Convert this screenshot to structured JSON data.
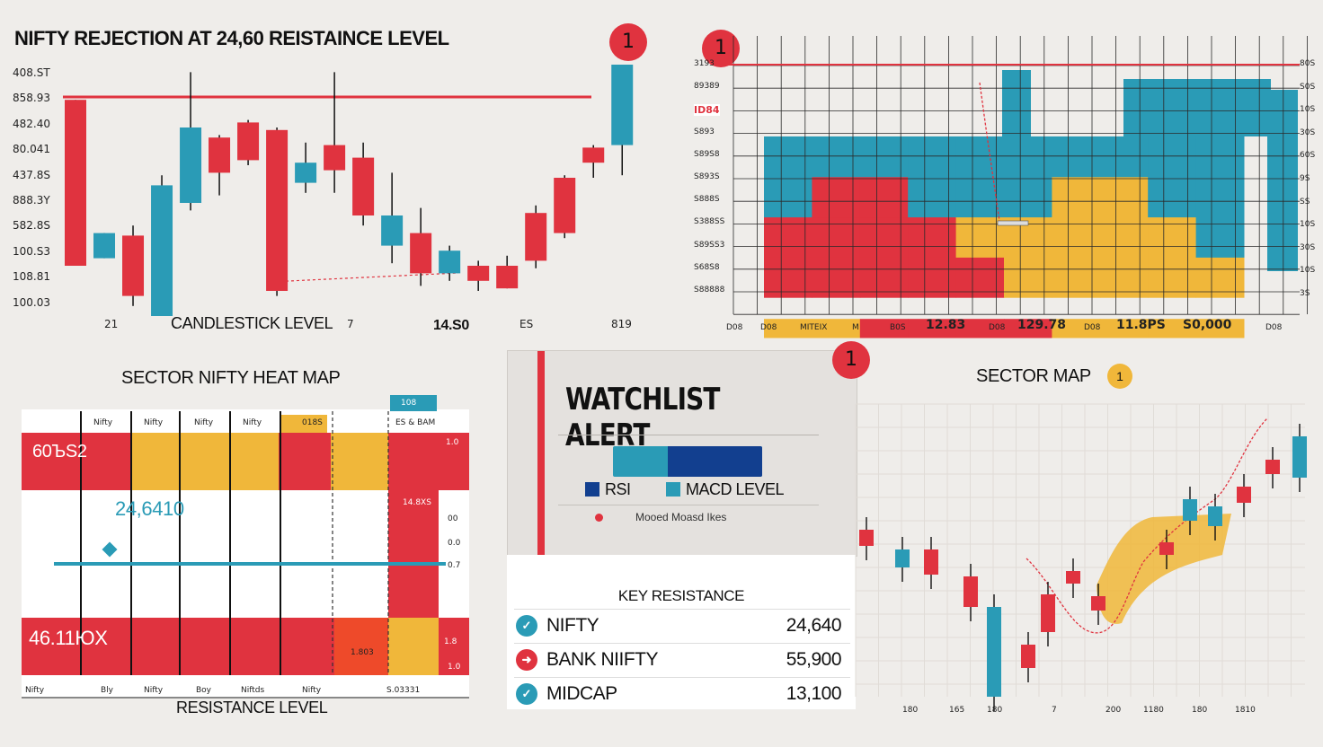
{
  "colors": {
    "red": "#e0333f",
    "teal": "#2a9bb6",
    "yellow": "#f0b73a",
    "navy": "#123f8f",
    "orange": "#ee4a2a"
  },
  "chart_data": [
    {
      "type": "candlestick",
      "title": "NIFTY REJECTION AT 24,60 REISTAINCE LEVEL",
      "xlabel": "CANDLESTICK LEVEL",
      "y_tick_labels": [
        "408.ST",
        "858.93",
        "482.40",
        "80.041",
        "437.8S",
        "888.3Y",
        "582.8S",
        "100.S3",
        "108.81",
        "100.03"
      ],
      "x_tick_labels": [
        "21",
        "7",
        "14.S0",
        "ES",
        "819"
      ],
      "resistance_label": "1",
      "candles": [
        {
          "o": 0.86,
          "c": 0.2,
          "h": 0.86,
          "l": 0.2,
          "color": "red"
        },
        {
          "o": 0.33,
          "c": 0.23,
          "h": 0.33,
          "l": 0.23,
          "color": "teal"
        },
        {
          "o": 0.32,
          "c": 0.08,
          "h": 0.36,
          "l": 0.04,
          "color": "red"
        },
        {
          "o": 0.0,
          "c": 0.52,
          "h": 0.56,
          "l": 0.0,
          "color": "teal"
        },
        {
          "o": 0.45,
          "c": 0.75,
          "h": 0.97,
          "l": 0.42,
          "color": "teal"
        },
        {
          "o": 0.71,
          "c": 0.57,
          "h": 0.72,
          "l": 0.48,
          "color": "red"
        },
        {
          "o": 0.77,
          "c": 0.62,
          "h": 0.78,
          "l": 0.6,
          "color": "red"
        },
        {
          "o": 0.74,
          "c": 0.1,
          "h": 0.75,
          "l": 0.08,
          "color": "red"
        },
        {
          "o": 0.53,
          "c": 0.61,
          "h": 0.69,
          "l": 0.49,
          "color": "teal"
        },
        {
          "o": 0.68,
          "c": 0.58,
          "h": 0.97,
          "l": 0.49,
          "color": "red"
        },
        {
          "o": 0.63,
          "c": 0.4,
          "h": 0.69,
          "l": 0.36,
          "color": "red"
        },
        {
          "o": 0.4,
          "c": 0.28,
          "h": 0.57,
          "l": 0.21,
          "color": "teal"
        },
        {
          "o": 0.33,
          "c": 0.17,
          "h": 0.43,
          "l": 0.12,
          "color": "red"
        },
        {
          "o": 0.17,
          "c": 0.26,
          "h": 0.28,
          "l": 0.14,
          "color": "teal"
        },
        {
          "o": 0.2,
          "c": 0.14,
          "h": 0.22,
          "l": 0.1,
          "color": "red"
        },
        {
          "o": 0.2,
          "c": 0.11,
          "h": 0.24,
          "l": 0.11,
          "color": "red"
        },
        {
          "o": 0.41,
          "c": 0.22,
          "h": 0.44,
          "l": 0.19,
          "color": "red"
        },
        {
          "o": 0.55,
          "c": 0.33,
          "h": 0.56,
          "l": 0.31,
          "color": "red"
        },
        {
          "o": 0.61,
          "c": 0.67,
          "h": 0.68,
          "l": 0.55,
          "color": "red"
        },
        {
          "o": 0.68,
          "c": 1.0,
          "h": 1.0,
          "l": 0.56,
          "color": "teal"
        }
      ]
    },
    {
      "type": "heatmap",
      "left_tick_labels": [
        "3193",
        "89389",
        "ID84",
        "S893",
        "S89S8",
        "S893S",
        "S888S",
        "S388SS",
        "S89SS3",
        "S68S8",
        "S88888"
      ],
      "right_tick_labels": [
        "80S",
        "S0S",
        "10S",
        "30S",
        "60S",
        "9S",
        "SS",
        "10S",
        "30S",
        "10S",
        "3S"
      ],
      "x_tick_labels": [
        "D08",
        "D08",
        "MITEIX",
        "M",
        "B0S",
        "12.83",
        "D08",
        "129.78",
        "D08",
        "11.8PS",
        "S0,000",
        "D08"
      ],
      "marker_label": "1",
      "columns": [
        [
          "yellow",
          "red",
          "red",
          "blue",
          "blue"
        ],
        [
          "yellow",
          "red",
          "red",
          "red",
          "blue"
        ],
        [
          "red",
          "red",
          "red",
          "red",
          "blue"
        ],
        [
          "red",
          "red",
          "red",
          "blue",
          "blue"
        ],
        [
          "red",
          "red",
          "yellow",
          "blue",
          "blue"
        ],
        [
          "red",
          "yellow",
          "yellow",
          "blue",
          "blue"
        ],
        [
          "yellow",
          "yellow",
          "yellow",
          "yellow",
          "blue"
        ],
        [
          "yellow",
          "yellow",
          "yellow",
          "yellow",
          "blue"
        ],
        [
          "yellow",
          "yellow",
          "yellow",
          "blue",
          "blue"
        ],
        [
          "yellow",
          "yellow",
          "blue",
          "blue",
          "blue"
        ]
      ]
    },
    {
      "type": "heatmap",
      "title": "SECTOR NIFTY HEAT MAP",
      "xlabel": "RESISTANCE LEVEL",
      "column_headers": [
        "Nifty",
        "Nifty",
        "Nifty",
        "Nifty",
        "018S",
        "ES & BAM"
      ],
      "row_labels": [
        "60ЪS2",
        "24,6410",
        "46.11ЮX"
      ],
      "annotations": [
        "1.0",
        "14.8XS",
        "00",
        "0.0",
        "0.7",
        "1.8",
        "1.0",
        "1.803"
      ],
      "x_tick_labels": [
        "Nifty",
        "Bly",
        "Nifty",
        "Boy",
        "Niftds",
        "Nifty",
        "S.03331"
      ],
      "level_badge": "108"
    },
    {
      "type": "candlestick",
      "title": "SECTOR MAP",
      "badge_label": "1",
      "x_tick_labels": [
        "180",
        "165",
        "180",
        "7",
        "200",
        "1180",
        "180",
        "1810"
      ]
    }
  ],
  "watchlist": {
    "title": "WATCHLIST ALERT",
    "badge": "1",
    "legend_rsi": "RSI",
    "legend_macd": "MACD LEVEL",
    "footnote": "Mooed Moasd Ikes",
    "rsi_level": 0.63
  },
  "resistance": {
    "header": "KEY RESISTANCE",
    "rows": [
      {
        "icon": "check-icon",
        "name": "NIFTY",
        "value": "24,640",
        "color": "#2a9bb6"
      },
      {
        "icon": "arrow-icon",
        "name": "BANK NIIFTY",
        "value": "55,900",
        "color": "#e0333f"
      },
      {
        "icon": "check-icon",
        "name": "MIDCAP",
        "value": "13,100",
        "color": "#2a9bb6"
      }
    ]
  }
}
